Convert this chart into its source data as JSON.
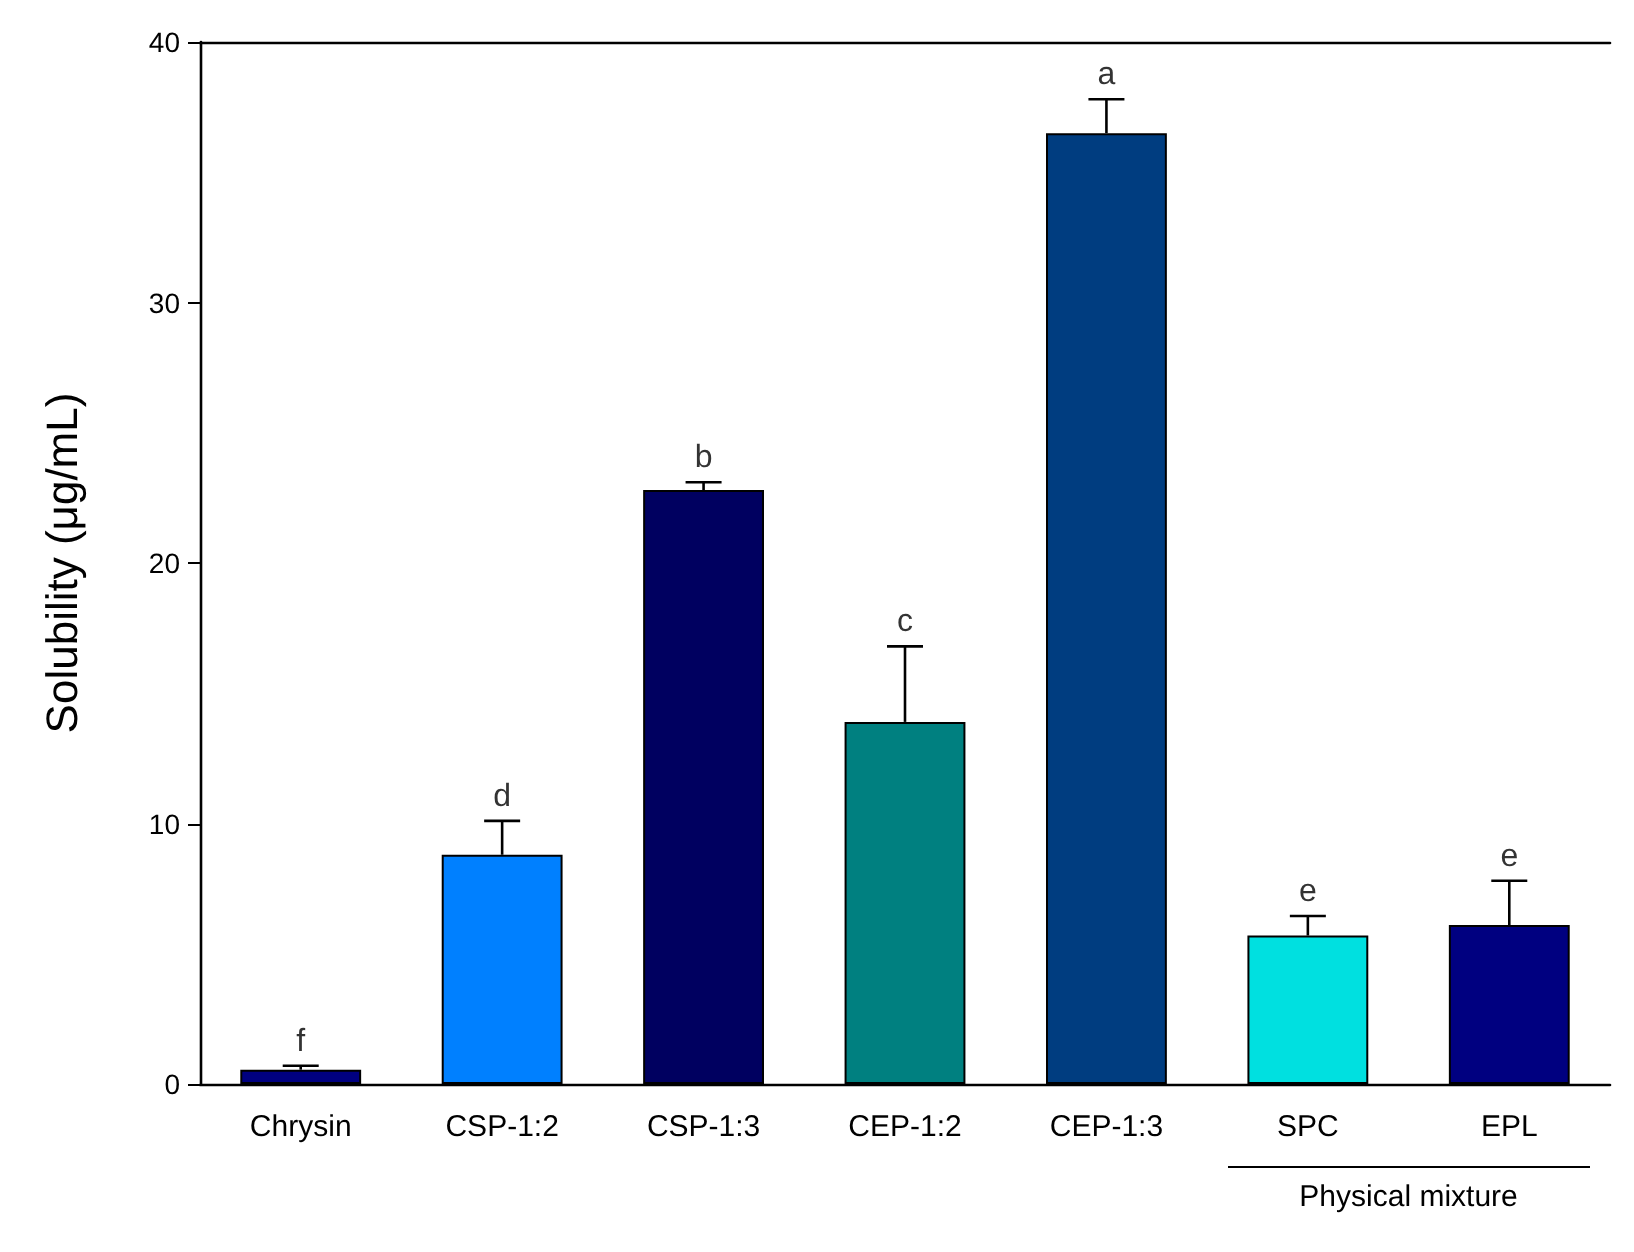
{
  "chart_data": {
    "type": "bar",
    "ylabel": "Solubility (μg/mL)",
    "categories": [
      "Chrysin",
      "CSP-1:2",
      "CSP-1:3",
      "CEP-1:2",
      "CEP-1:3",
      "SPC",
      "EPL"
    ],
    "values": [
      0.55,
      8.8,
      22.8,
      13.9,
      36.5,
      5.7,
      6.1
    ],
    "colors": [
      "#000080",
      "#0080ff",
      "#000060",
      "#008080",
      "#003d80",
      "#00e0e0",
      "#000080"
    ],
    "errors": [
      [
        0.55,
        0.7
      ],
      [
        8.8,
        10.1
      ],
      [
        22.8,
        23.1
      ],
      [
        13.9,
        16.8
      ],
      [
        36.5,
        37.8
      ],
      [
        5.7,
        6.45
      ],
      [
        6.1,
        7.8
      ]
    ],
    "ylim": [
      0,
      40
    ],
    "yticks": [
      0,
      10,
      20,
      30,
      40
    ],
    "grid": false,
    "annotations": [
      {
        "text": "f",
        "x": "Chrysin",
        "y": 0.7
      },
      {
        "text": "d",
        "x": "CSP-1:2",
        "y": 10.1
      },
      {
        "text": "b",
        "x": "CSP-1:3",
        "y": 23.1
      },
      {
        "text": "c",
        "x": "CEP-1:2",
        "y": 16.8
      },
      {
        "text": "a",
        "x": "CEP-1:3",
        "y": 37.8
      },
      {
        "text": "e",
        "x": "SPC",
        "y": 6.45
      },
      {
        "text": "e",
        "x": "EPL",
        "y": 7.8
      },
      "Physical mixture"
    ]
  }
}
